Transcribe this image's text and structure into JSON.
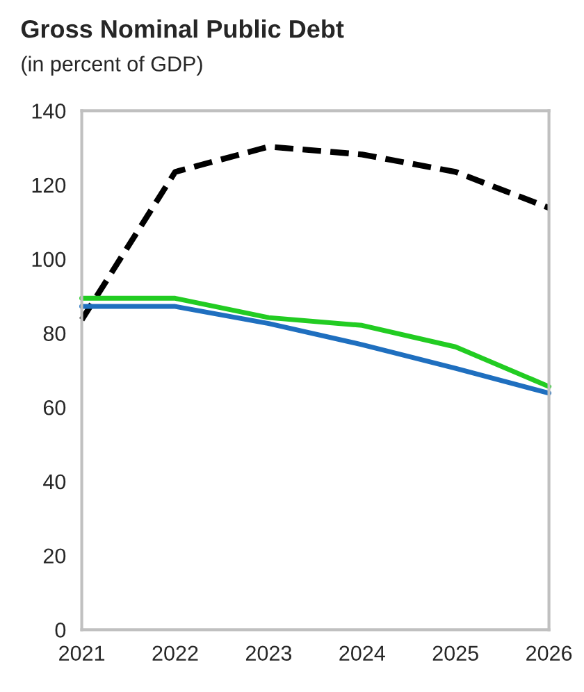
{
  "chart_data": {
    "type": "line",
    "title": "Gross Nominal Public Debt",
    "subtitle": "(in percent of GDP)",
    "x": [
      2021,
      2022,
      2023,
      2024,
      2025,
      2026
    ],
    "series": [
      {
        "color": "#000000",
        "line_style": "dashed",
        "values": [
          83.6,
          123.5,
          130.3,
          128.2,
          123.5,
          113.8
        ]
      },
      {
        "color": "#22cc22",
        "line_style": "solid",
        "values": [
          89.4,
          89.4,
          84.2,
          82.1,
          76.3,
          65.6
        ]
      },
      {
        "color": "#1f6fbf",
        "line_style": "solid",
        "values": [
          87.2,
          87.2,
          82.6,
          76.9,
          70.5,
          63.8
        ]
      }
    ],
    "xlim": [
      2021,
      2026
    ],
    "xticks": [
      2021,
      2022,
      2023,
      2024,
      2025,
      2026
    ],
    "ylim": [
      0,
      140
    ],
    "yticks": [
      0,
      20,
      40,
      60,
      80,
      100,
      120,
      140
    ],
    "grid": false,
    "legend": false
  }
}
